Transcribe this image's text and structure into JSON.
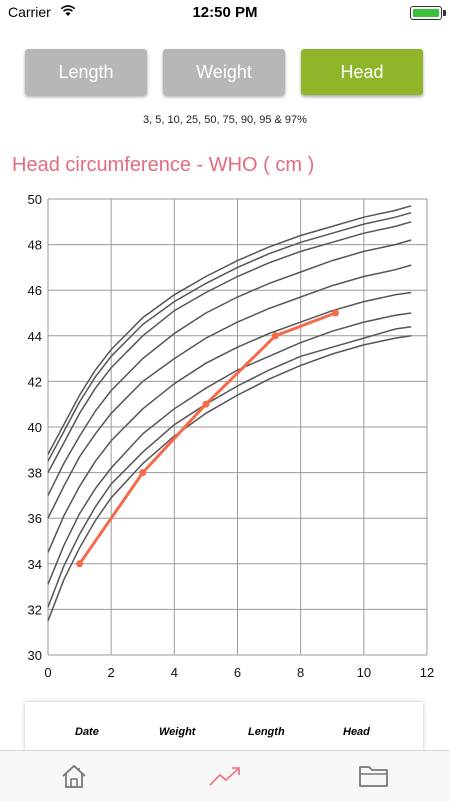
{
  "status_bar": {
    "carrier": "Carrier",
    "time": "12:50 PM"
  },
  "tabs": [
    {
      "label": "Length",
      "active": false
    },
    {
      "label": "Weight",
      "active": false
    },
    {
      "label": "Head",
      "active": true
    }
  ],
  "percentiles_label": "3, 5, 10, 25, 50, 75, 90, 95 & 97%",
  "chart_title": "Head circumference - WHO ( cm )",
  "colors": {
    "active_tab": "#8fb62a",
    "inactive_tab": "#b7b7b7",
    "title": "#e56b7f",
    "series": "#f46a4b",
    "percentile_lines": "#555555"
  },
  "table_headers": [
    "Date",
    "Weight",
    "Length",
    "Head"
  ],
  "bottom_tabs": [
    {
      "icon": "home-icon"
    },
    {
      "icon": "trend-icon"
    },
    {
      "icon": "folder-icon"
    }
  ],
  "chart_data": {
    "type": "line",
    "xlim": [
      0,
      12
    ],
    "ylim": [
      30,
      50
    ],
    "x_ticks": [
      0,
      2,
      4,
      6,
      8,
      10,
      12
    ],
    "y_ticks": [
      30,
      32,
      34,
      36,
      38,
      40,
      42,
      44,
      46,
      48,
      50
    ],
    "grid": true,
    "percentile_x": [
      0,
      0.5,
      1,
      1.5,
      2,
      3,
      4,
      5,
      6,
      7,
      8,
      9,
      10,
      11,
      11.5
    ],
    "percentiles": [
      {
        "values": [
          31.5,
          33.3,
          34.7,
          35.9,
          36.9,
          38.4,
          39.6,
          40.6,
          41.4,
          42.1,
          42.7,
          43.2,
          43.6,
          43.9,
          44.0
        ]
      },
      {
        "values": [
          32.1,
          33.9,
          35.3,
          36.5,
          37.5,
          38.9,
          40.1,
          41.0,
          41.8,
          42.5,
          43.1,
          43.5,
          43.9,
          44.3,
          44.4
        ]
      },
      {
        "values": [
          33.1,
          34.8,
          36.2,
          37.3,
          38.2,
          39.7,
          40.8,
          41.7,
          42.5,
          43.1,
          43.7,
          44.2,
          44.6,
          44.9,
          45.0
        ]
      },
      {
        "values": [
          34.5,
          36.1,
          37.4,
          38.5,
          39.4,
          40.8,
          41.9,
          42.8,
          43.5,
          44.1,
          44.6,
          45.1,
          45.5,
          45.8,
          45.9
        ]
      },
      {
        "values": [
          36.0,
          37.4,
          38.7,
          39.7,
          40.6,
          42.0,
          43.0,
          43.9,
          44.6,
          45.2,
          45.7,
          46.2,
          46.6,
          46.9,
          47.1
        ]
      },
      {
        "values": [
          37.0,
          38.4,
          39.6,
          40.7,
          41.6,
          43.0,
          44.1,
          45.0,
          45.7,
          46.3,
          46.8,
          47.3,
          47.7,
          48.0,
          48.2
        ]
      },
      {
        "values": [
          38.0,
          39.3,
          40.6,
          41.7,
          42.6,
          44.0,
          45.1,
          45.9,
          46.6,
          47.2,
          47.7,
          48.1,
          48.5,
          48.8,
          49.0
        ]
      },
      {
        "values": [
          38.5,
          39.8,
          41.1,
          42.2,
          43.1,
          44.5,
          45.5,
          46.3,
          47.0,
          47.6,
          48.1,
          48.5,
          48.9,
          49.2,
          49.4
        ]
      },
      {
        "values": [
          38.8,
          40.1,
          41.4,
          42.5,
          43.4,
          44.8,
          45.8,
          46.6,
          47.3,
          47.9,
          48.4,
          48.8,
          49.2,
          49.5,
          49.7
        ]
      }
    ],
    "series": [
      {
        "x": [
          1,
          3,
          5,
          7.2,
          9.1
        ],
        "values": [
          34,
          38,
          41,
          44,
          45
        ]
      }
    ]
  }
}
